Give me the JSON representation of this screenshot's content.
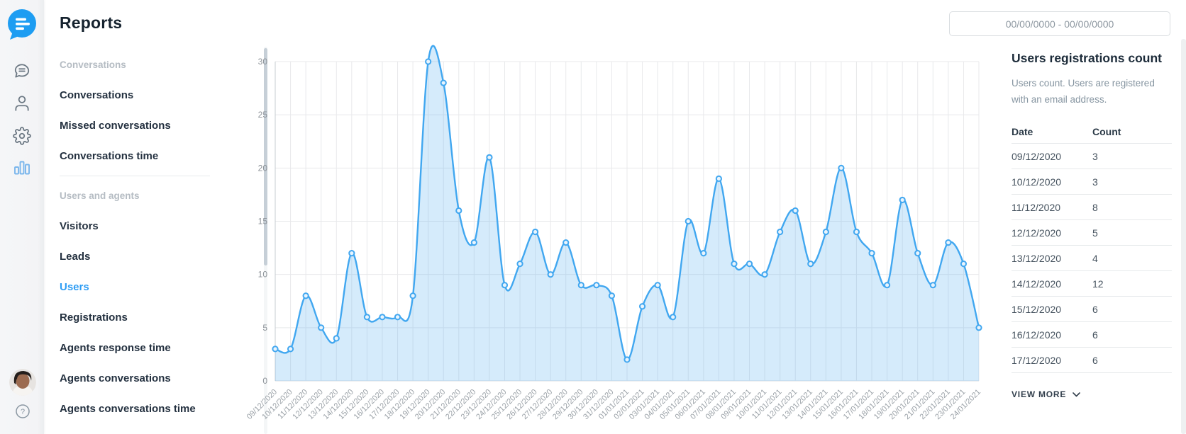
{
  "header": {
    "title": "Reports",
    "date_range_value": "00/00/0000 - 00/00/0000"
  },
  "rail": {
    "icons": [
      "smartsupp-logo",
      "conversations-bubble-icon",
      "contacts-person-icon",
      "settings-gear-icon",
      "reports-bar-chart-icon",
      "avatar",
      "help-question-icon"
    ],
    "active_icon": "reports-bar-chart-icon"
  },
  "sidebar": {
    "groups": [
      {
        "header": "Conversations",
        "items": [
          {
            "label": "Conversations"
          },
          {
            "label": "Missed conversations"
          },
          {
            "label": "Conversations time"
          }
        ]
      },
      {
        "header": "Users and agents",
        "items": [
          {
            "label": "Visitors"
          },
          {
            "label": "Leads"
          },
          {
            "label": "Users",
            "active": true
          },
          {
            "label": "Registrations"
          },
          {
            "label": "Agents response time"
          },
          {
            "label": "Agents conversations"
          },
          {
            "label": "Agents conversations time"
          }
        ]
      }
    ]
  },
  "chart_data": {
    "type": "area",
    "title": "",
    "xlabel": "",
    "ylabel": "",
    "x": [
      "09/12/2020",
      "10/12/2020",
      "11/12/2020",
      "12/12/2020",
      "13/12/2020",
      "14/12/2020",
      "15/12/2020",
      "16/12/2020",
      "17/12/2020",
      "18/12/2020",
      "19/12/2020",
      "20/12/2020",
      "21/12/2020",
      "22/12/2020",
      "23/12/2020",
      "24/12/2020",
      "25/12/2020",
      "26/12/2020",
      "27/12/2020",
      "28/12/2020",
      "29/12/2020",
      "30/12/2020",
      "31/12/2020",
      "01/01/2021",
      "02/01/2021",
      "03/01/2021",
      "04/01/2021",
      "05/01/2021",
      "06/01/2021",
      "07/01/2021",
      "08/01/2021",
      "09/01/2021",
      "10/01/2021",
      "11/01/2021",
      "12/01/2021",
      "13/01/2021",
      "14/01/2021",
      "15/01/2021",
      "16/01/2021",
      "17/01/2021",
      "18/01/2021",
      "19/01/2021",
      "20/01/2021",
      "21/01/2021",
      "22/01/2021",
      "23/01/2021",
      "24/01/2021"
    ],
    "series": [
      {
        "name": "Users registrations count",
        "values": [
          3,
          3,
          8,
          5,
          4,
          12,
          6,
          6,
          6,
          8,
          30,
          28,
          16,
          13,
          21,
          9,
          11,
          14,
          10,
          13,
          9,
          9,
          8,
          2,
          7,
          9,
          6,
          15,
          12,
          19,
          11,
          11,
          10,
          14,
          16,
          11,
          14,
          20,
          14,
          12,
          9,
          17,
          12,
          9,
          13,
          11,
          5
        ]
      }
    ],
    "ylim": [
      0,
      30
    ],
    "yticks": [
      0,
      5,
      10,
      15,
      20,
      25,
      30
    ],
    "grid": true,
    "legend": "none",
    "line_color": "#41a7f0",
    "fill_color": "rgba(86,174,240,0.25)",
    "marker": "open-circle"
  },
  "right_panel": {
    "title": "Users registrations count",
    "description": "Users count. Users are registered with an email address.",
    "table": {
      "columns": [
        "Date",
        "Count"
      ],
      "rows": [
        [
          "09/12/2020",
          "3"
        ],
        [
          "10/12/2020",
          "3"
        ],
        [
          "11/12/2020",
          "8"
        ],
        [
          "12/12/2020",
          "5"
        ],
        [
          "13/12/2020",
          "4"
        ],
        [
          "14/12/2020",
          "12"
        ],
        [
          "15/12/2020",
          "6"
        ],
        [
          "16/12/2020",
          "6"
        ],
        [
          "17/12/2020",
          "6"
        ]
      ]
    },
    "view_more_label": "VIEW MORE"
  },
  "colors": {
    "accent_blue": "#2e9df4",
    "logo_blue": "#1e9df2",
    "chart_line": "#41a7f0",
    "chart_fill_light": "#d7eafa",
    "grid_line": "#e8e9eb",
    "text_dark": "#1c2b39",
    "text_muted": "#8695a1",
    "section_header_gray": "#b5bcc3"
  }
}
